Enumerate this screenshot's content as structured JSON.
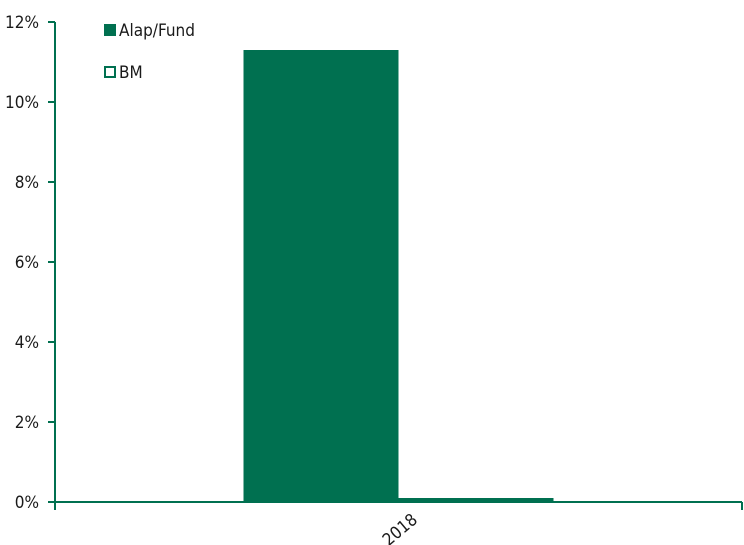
{
  "chart_data": {
    "type": "bar",
    "categories": [
      "2018"
    ],
    "series": [
      {
        "name": "Alap/Fund",
        "values": [
          11.3
        ],
        "color": "#007050",
        "fill": "solid"
      },
      {
        "name": "BM",
        "values": [
          0.1
        ],
        "color": "#007050",
        "fill": "hollow"
      }
    ],
    "ylim": [
      0,
      12
    ],
    "y_ticks": [
      "0%",
      "2%",
      "4%",
      "6%",
      "8%",
      "10%",
      "12%"
    ],
    "y_tick_values": [
      0,
      2,
      4,
      6,
      8,
      10,
      12
    ],
    "grid": false,
    "legend": "top-left",
    "axis_color": "#007050"
  }
}
